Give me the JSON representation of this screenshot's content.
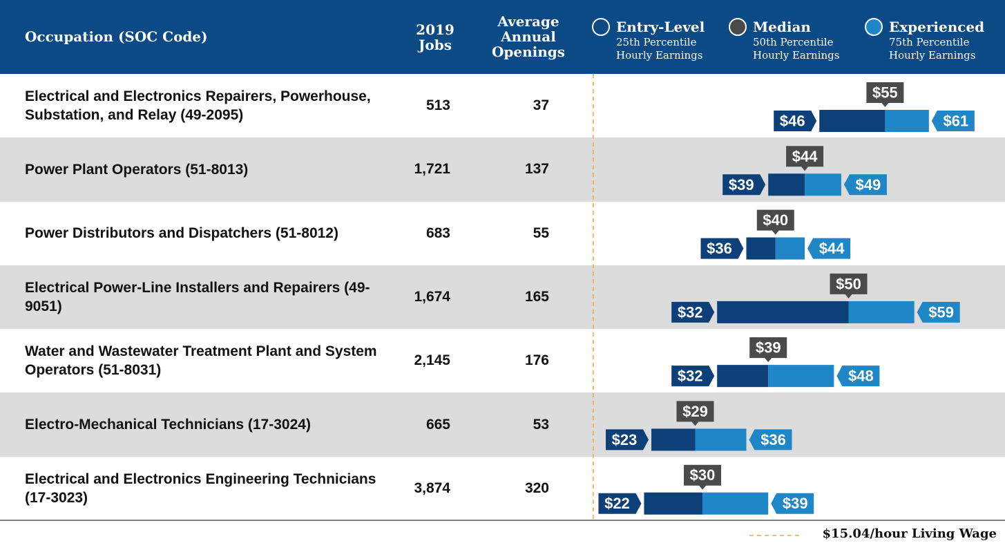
{
  "chart_data": {
    "type": "range",
    "columns": [
      "Occupation (SOC Code)",
      "2019 Jobs",
      "Average Annual Openings"
    ],
    "categories": [
      "Electrical and Electronics Repairers, Powerhouse, Substation, and Relay (49-2095)",
      "Power Plant Operators (51-8013)",
      "Power Distributors and Dispatchers (51-8012)",
      "Electrical Power-Line Installers and Repairers (49-9051)",
      "Water and Wastewater Treatment Plant and System Operators (51-8031)",
      "Electro-Mechanical Technicians (17-3024)",
      "Electrical and Electronics Engineering Technicians (17-3023)"
    ],
    "jobs": {
      "values": [
        513,
        1721,
        683,
        1674,
        2145,
        665,
        3874
      ],
      "value_labels": [
        "513",
        "1,721",
        "683",
        "1,674",
        "2,145",
        "665",
        "3,874"
      ]
    },
    "openings": {
      "values": [
        37,
        137,
        55,
        165,
        176,
        53,
        320
      ]
    },
    "series": [
      {
        "name": "Entry-Level",
        "description": "25th Percentile Hourly Earnings",
        "color": "#0d3f78",
        "values": [
          46,
          39,
          36,
          32,
          32,
          23,
          22
        ],
        "value_labels": [
          "$46",
          "$39",
          "$36",
          "$32",
          "$32",
          "$23",
          "$22"
        ]
      },
      {
        "name": "Median",
        "description": "50th Percentile Hourly Earnings",
        "color": "#4a4a4a",
        "values": [
          55,
          44,
          40,
          50,
          39,
          29,
          30
        ],
        "value_labels": [
          "$55",
          "$44",
          "$40",
          "$50",
          "$39",
          "$29",
          "$30"
        ]
      },
      {
        "name": "Experienced",
        "description": "75th Percentile Hourly Earnings",
        "color": "#1f86c8",
        "values": [
          61,
          49,
          44,
          59,
          48,
          36,
          39
        ],
        "value_labels": [
          "$61",
          "$49",
          "$44",
          "$59",
          "$48",
          "$36",
          "$39"
        ]
      }
    ],
    "living_wage": {
      "value": 15.04,
      "label": "$15.04/hour Living Wage",
      "color": "#f0a830"
    },
    "xlim": [
      12.5,
      70
    ]
  }
}
